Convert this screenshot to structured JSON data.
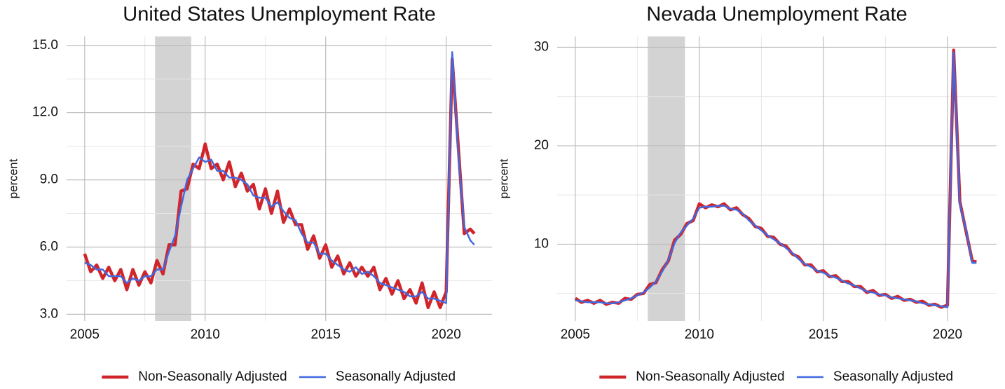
{
  "chart_data": [
    {
      "type": "line",
      "title": "United States Unemployment Rate",
      "ylabel": "percent",
      "x": [
        2005,
        2005.25,
        2005.5,
        2005.75,
        2006,
        2006.25,
        2006.5,
        2006.75,
        2007,
        2007.25,
        2007.5,
        2007.75,
        2008,
        2008.25,
        2008.5,
        2008.75,
        2009,
        2009.25,
        2009.5,
        2009.75,
        2010,
        2010.25,
        2010.5,
        2010.75,
        2011,
        2011.25,
        2011.5,
        2011.75,
        2012,
        2012.25,
        2012.5,
        2012.75,
        2013,
        2013.25,
        2013.5,
        2013.75,
        2014,
        2014.25,
        2014.5,
        2014.75,
        2015,
        2015.25,
        2015.5,
        2015.75,
        2016,
        2016.25,
        2016.5,
        2016.75,
        2017,
        2017.25,
        2017.5,
        2017.75,
        2018,
        2018.25,
        2018.5,
        2018.75,
        2019,
        2019.25,
        2019.5,
        2019.75,
        2020,
        2020.25,
        2020.5,
        2020.75,
        2021,
        2021.17
      ],
      "series": [
        {
          "name": "Non-Seasonally Adjusted",
          "color": "#d0262b",
          "values": [
            5.7,
            4.9,
            5.2,
            4.6,
            5.1,
            4.5,
            5.0,
            4.1,
            5.0,
            4.3,
            4.9,
            4.4,
            5.4,
            4.8,
            6.1,
            6.1,
            8.5,
            8.6,
            9.7,
            9.5,
            10.6,
            9.5,
            9.7,
            9.0,
            9.8,
            8.7,
            9.3,
            8.5,
            8.8,
            7.7,
            8.6,
            7.5,
            8.5,
            7.1,
            7.7,
            7.0,
            7.0,
            5.9,
            6.5,
            5.5,
            6.1,
            5.1,
            5.6,
            4.8,
            5.3,
            4.7,
            5.1,
            4.7,
            5.1,
            4.1,
            4.6,
            3.9,
            4.5,
            3.7,
            4.1,
            3.5,
            4.4,
            3.3,
            4.0,
            3.3,
            4.0,
            14.4,
            10.5,
            6.6,
            6.8,
            6.6
          ]
        },
        {
          "name": "Seasonally Adjusted",
          "color": "#4169e1",
          "values": [
            5.3,
            5.2,
            5.0,
            5.0,
            4.7,
            4.7,
            4.7,
            4.4,
            4.6,
            4.5,
            4.7,
            4.7,
            5.0,
            5.0,
            5.8,
            6.5,
            7.8,
            9.0,
            9.5,
            10.0,
            9.8,
            9.9,
            9.4,
            9.4,
            9.1,
            9.1,
            9.0,
            8.8,
            8.3,
            8.2,
            8.2,
            7.8,
            8.0,
            7.6,
            7.3,
            7.2,
            6.6,
            6.2,
            6.2,
            5.7,
            5.7,
            5.4,
            5.2,
            5.0,
            4.9,
            5.1,
            4.8,
            4.9,
            4.7,
            4.4,
            4.3,
            4.2,
            4.1,
            4.0,
            3.8,
            3.8,
            4.0,
            3.7,
            3.7,
            3.6,
            3.5,
            14.7,
            10.2,
            6.9,
            6.3,
            6.1
          ]
        }
      ],
      "xlim": [
        2004.25,
        2021.9
      ],
      "xticks": [
        2005,
        2010,
        2015,
        2020
      ],
      "ylim": [
        2.7,
        15.4
      ],
      "yticks": [
        {
          "value": 3,
          "label": "3.0"
        },
        {
          "value": 6,
          "label": "6.0"
        },
        {
          "value": 9,
          "label": "9.0"
        },
        {
          "value": 12,
          "label": "12.0"
        },
        {
          "value": 15,
          "label": "15.0"
        }
      ],
      "recession": [
        2007.92,
        2009.42
      ],
      "grid": true
    },
    {
      "type": "line",
      "title": "Nevada Unemployment Rate",
      "ylabel": "percent",
      "x": [
        2005,
        2005.25,
        2005.5,
        2005.75,
        2006,
        2006.25,
        2006.5,
        2006.75,
        2007,
        2007.25,
        2007.5,
        2007.75,
        2008,
        2008.25,
        2008.5,
        2008.75,
        2009,
        2009.25,
        2009.5,
        2009.75,
        2010,
        2010.25,
        2010.5,
        2010.75,
        2011,
        2011.25,
        2011.5,
        2011.75,
        2012,
        2012.25,
        2012.5,
        2012.75,
        2013,
        2013.25,
        2013.5,
        2013.75,
        2014,
        2014.25,
        2014.5,
        2014.75,
        2015,
        2015.25,
        2015.5,
        2015.75,
        2016,
        2016.25,
        2016.5,
        2016.75,
        2017,
        2017.25,
        2017.5,
        2017.75,
        2018,
        2018.25,
        2018.5,
        2018.75,
        2019,
        2019.25,
        2019.5,
        2019.75,
        2020,
        2020.25,
        2020.5,
        2020.75,
        2021,
        2021.17
      ],
      "series": [
        {
          "name": "Non-Seasonally Adjusted",
          "color": "#d0262b",
          "values": [
            4.5,
            4.1,
            4.3,
            4.0,
            4.3,
            3.9,
            4.1,
            4.0,
            4.5,
            4.4,
            4.9,
            5.0,
            5.9,
            6.1,
            7.4,
            8.3,
            10.4,
            11.0,
            12.1,
            12.4,
            14.1,
            13.7,
            14.0,
            13.8,
            14.1,
            13.5,
            13.7,
            13.0,
            12.6,
            11.8,
            11.6,
            10.8,
            10.7,
            10.0,
            9.8,
            9.0,
            8.7,
            7.9,
            7.9,
            7.2,
            7.3,
            6.7,
            6.8,
            6.2,
            6.2,
            5.7,
            5.7,
            5.1,
            5.3,
            4.8,
            4.9,
            4.5,
            4.7,
            4.3,
            4.4,
            4.1,
            4.2,
            3.8,
            3.9,
            3.6,
            3.8,
            29.7,
            14.3,
            11.3,
            8.3,
            8.2
          ]
        },
        {
          "name": "Seasonally Adjusted",
          "color": "#4169e1",
          "values": [
            4.3,
            4.2,
            4.1,
            4.1,
            4.1,
            4.0,
            4.0,
            4.1,
            4.3,
            4.5,
            4.8,
            5.1,
            5.6,
            6.2,
            7.2,
            8.4,
            10.1,
            11.2,
            11.9,
            12.6,
            13.7,
            13.8,
            13.8,
            13.9,
            13.9,
            13.6,
            13.5,
            13.1,
            12.4,
            11.9,
            11.4,
            10.9,
            10.5,
            10.1,
            9.6,
            9.1,
            8.5,
            8.0,
            7.7,
            7.3,
            7.1,
            6.8,
            6.6,
            6.3,
            6.0,
            5.8,
            5.5,
            5.2,
            5.1,
            4.9,
            4.8,
            4.6,
            4.5,
            4.4,
            4.3,
            4.2,
            4.0,
            3.9,
            3.8,
            3.7,
            3.6,
            29.5,
            14.0,
            11.5,
            8.1,
            8.1
          ]
        }
      ],
      "xlim": [
        2004.27,
        2021.98
      ],
      "xticks": [
        2005,
        2010,
        2015,
        2020
      ],
      "ylim": [
        2.2,
        31.1
      ],
      "yticks": [
        10,
        20,
        30
      ],
      "recession": [
        2007.92,
        2009.42
      ],
      "grid": true
    }
  ]
}
